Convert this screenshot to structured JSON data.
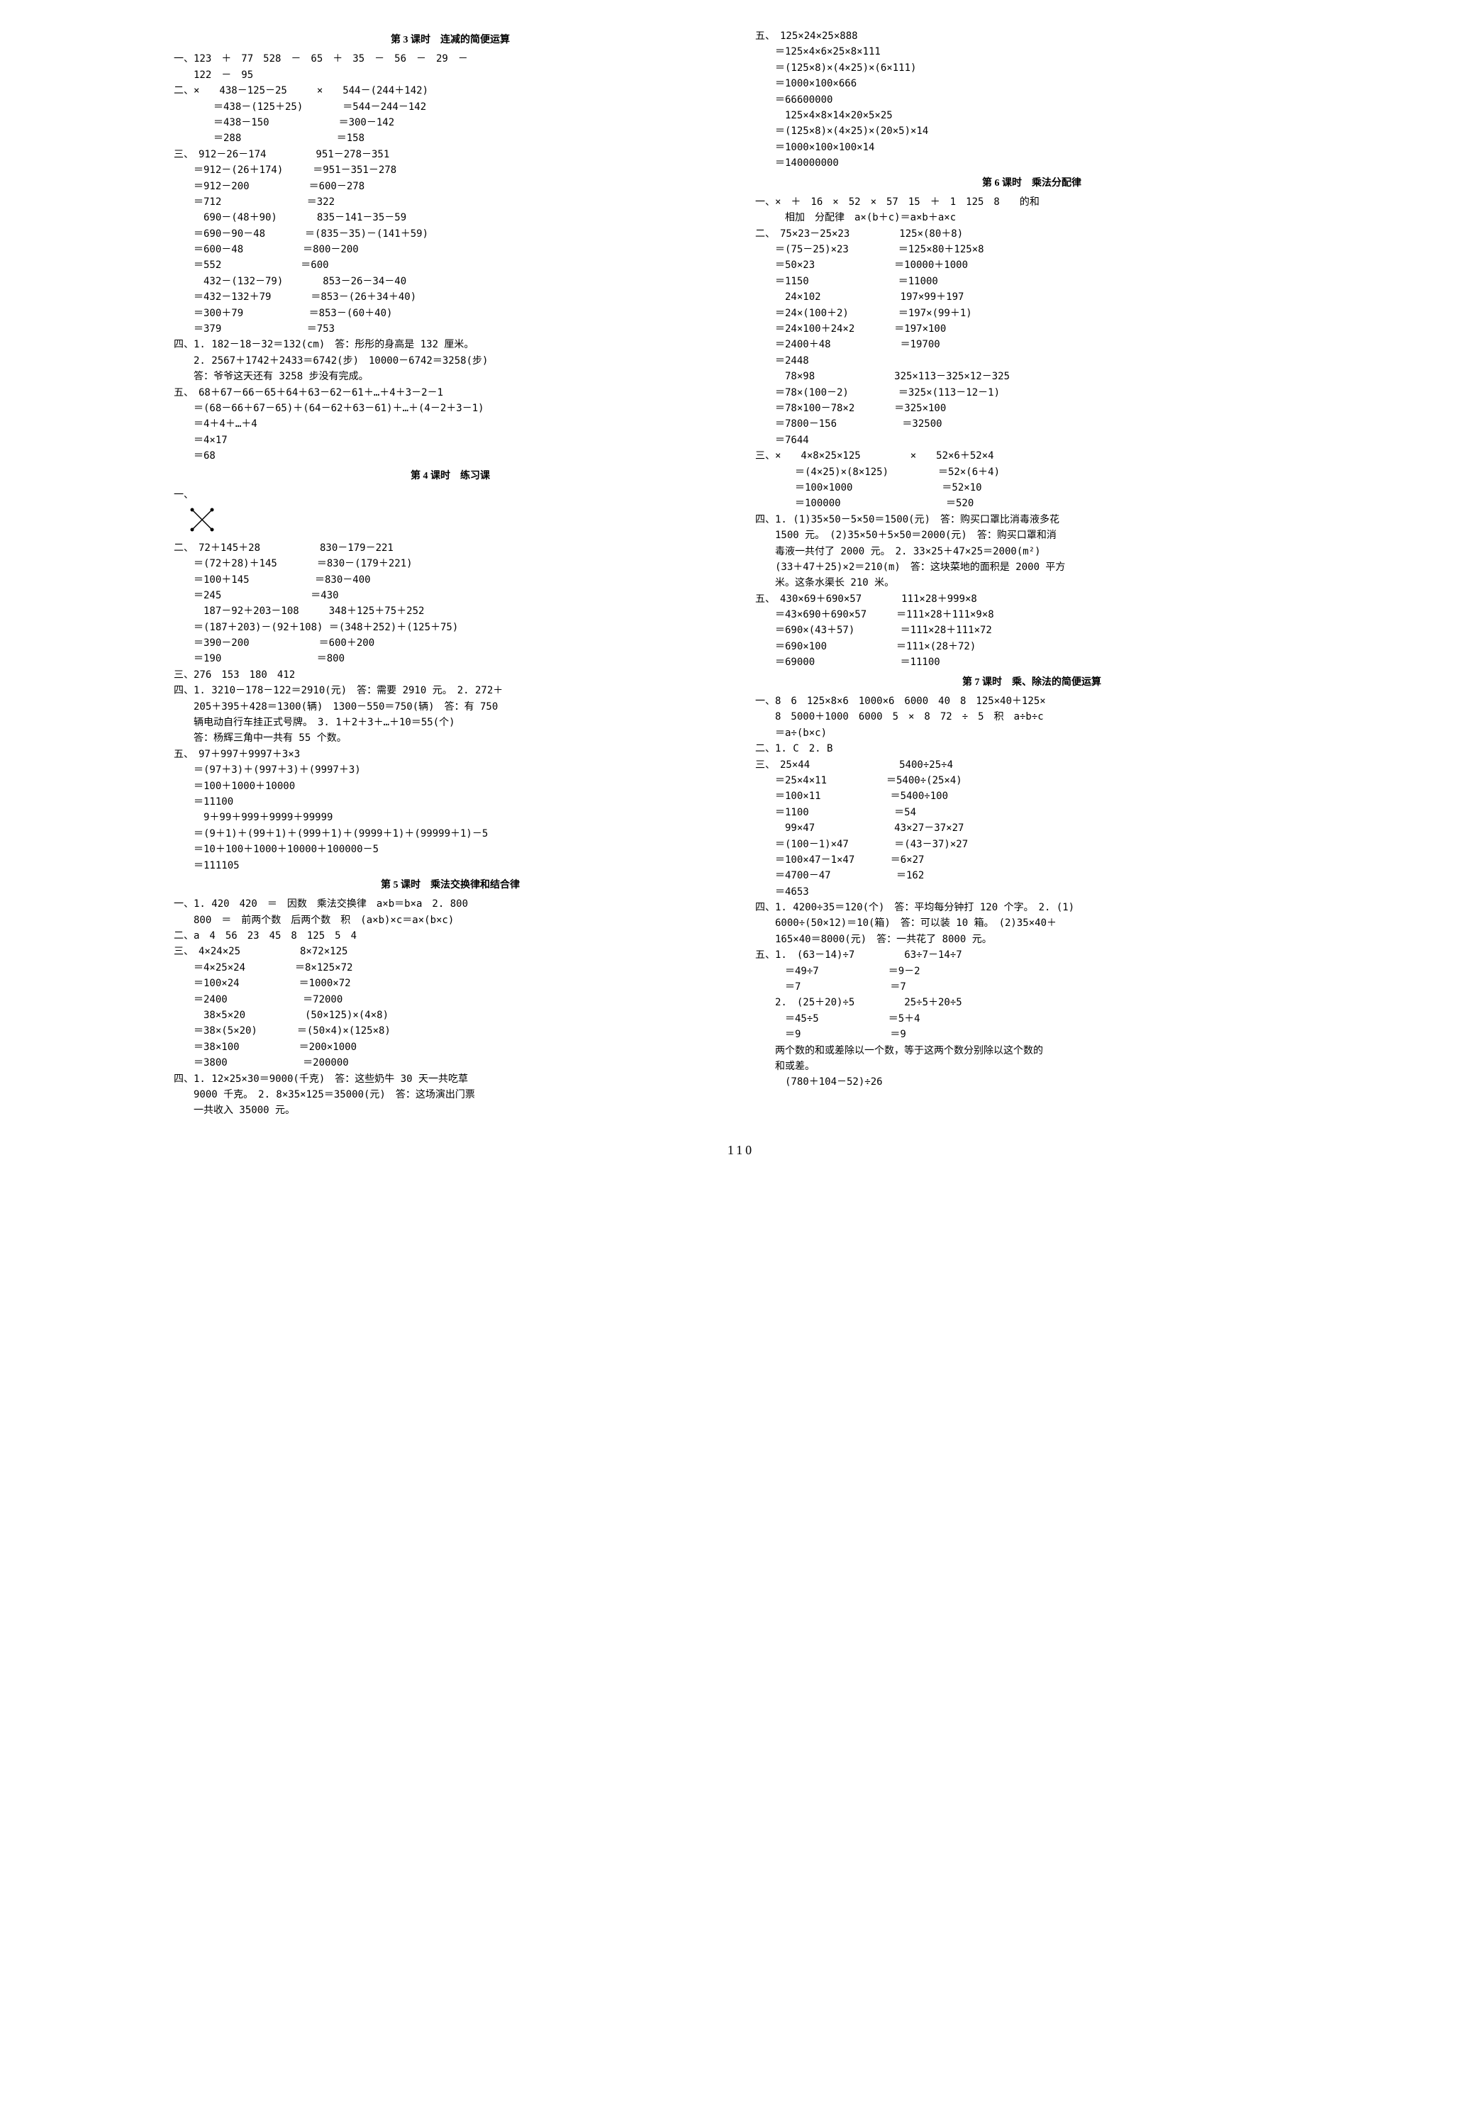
{
  "page_number": "110",
  "left_col": {
    "sec3_title": "第 3 课时　连减的简便运算",
    "s3_lines": [
      "一、123　＋　77　528　－　65　＋　35　－　56　－　29　－",
      "　　122　－　95",
      "二、×　　438－125－25　　　×　　544－(244＋142)",
      "　　　　＝438－(125＋25)　　　　＝544－244－142",
      "　　　　＝438－150　　　　　　　＝300－142",
      "　　　　＝288　　　　　　　　　 ＝158",
      "三、　912－26－174　　　　　951－278－351",
      "　　＝912－(26＋174)　　　＝951－351－278",
      "　　＝912－200　　　　　　＝600－278",
      "　　＝712　　　　　　　　 ＝322",
      "　　　690－(48＋90)　　　　835－141－35－59",
      "　　＝690－90－48　　　　＝(835－35)－(141＋59)",
      "　　＝600－48　　　　　　＝800－200",
      "　　＝552　　　　　　　　＝600",
      "　　　432－(132－79)　　　　853－26－34－40",
      "　　＝432－132＋79　　　　＝853－(26＋34＋40)",
      "　　＝300＋79　　　　　　 ＝853－(60＋40)",
      "　　＝379　　　　　　　　 ＝753",
      "四、1. 182－18－32＝132(cm)　答：彤彤的身高是 132 厘米。",
      "　　2. 2567＋1742＋2433＝6742(步)　10000－6742＝3258(步)",
      "　　答：爷爷这天还有 3258 步没有完成。",
      "五、　68＋67－66－65＋64＋63－62－61＋…＋4＋3－2－1",
      "　　＝(68－66＋67－65)＋(64－62＋63－61)＋…＋(4－2＋3－1)",
      "　　＝4＋4＋…＋4",
      "　　＝4×17",
      "　　＝68"
    ],
    "sec4_title": "第 4 课时　练习课",
    "s4_prelabel": "一、",
    "s4_lines": [
      "二、　72＋145＋28　　　　　　830－179－221",
      "　　＝(72＋28)＋145　　　　＝830－(179＋221)",
      "　　＝100＋145　　　　　　 ＝830－400",
      "　　＝245　　　　　　　　　＝430",
      "　　　187－92＋203－108　　　348＋125＋75＋252",
      "　　＝(187＋203)－(92＋108) ＝(348＋252)＋(125＋75)",
      "　　＝390－200　　　　　　　＝600＋200",
      "　　＝190　　　　　　　　　 ＝800",
      "三、276　153　180　412",
      "四、1. 3210－178－122＝2910(元)　答：需要 2910 元。　2. 272＋",
      "　　205＋395＋428＝1300(辆)　1300－550＝750(辆)　答：有 750",
      "　　辆电动自行车挂正式号牌。　3. 1＋2＋3＋…＋10＝55(个)",
      "　　答：杨辉三角中一共有 55 个数。",
      "五、　97＋997＋9997＋3×3",
      "　　＝(97＋3)＋(997＋3)＋(9997＋3)",
      "　　＝100＋1000＋10000",
      "　　＝11100",
      "　　　9＋99＋999＋9999＋99999",
      "　　＝(9＋1)＋(99＋1)＋(999＋1)＋(9999＋1)＋(99999＋1)－5",
      "　　＝10＋100＋1000＋10000＋100000－5",
      "　　＝111105"
    ],
    "sec5_title": "第 5 课时　乘法交换律和结合律",
    "s5_lines": [
      "一、1. 420　420　＝　因数　乘法交换律　a×b＝b×a　2. 800",
      "　　800　＝　前两个数　后两个数　积　(a×b)×c＝a×(b×c)",
      "二、a　4　56　23　45　8　125　5　4",
      "三、　4×24×25　　　　　　8×72×125",
      "　　＝4×25×24　　　　　＝8×125×72",
      "　　＝100×24　　　　　　＝1000×72",
      "　　＝2400　　　　　　　 ＝72000",
      "　　　38×5×20　　　　　　(50×125)×(4×8)",
      "　　＝38×(5×20)　　　　＝(50×4)×(125×8)",
      "　　＝38×100　　　　　　＝200×1000",
      "　　＝3800　　　　　　　 ＝200000",
      "四、1. 12×25×30＝9000(千克)　答：这些奶牛 30 天一共吃草",
      "　　9000 千克。　2. 8×35×125＝35000(元)　答：这场演出门票",
      "　　一共收入 35000 元。"
    ]
  },
  "right_col": {
    "s5b_lines": [
      "五、　125×24×25×888",
      "　　＝125×4×6×25×8×111",
      "　　＝(125×8)×(4×25)×(6×111)",
      "　　＝1000×100×666",
      "　　＝66600000",
      "　　　125×4×8×14×20×5×25",
      "　　＝(125×8)×(4×25)×(20×5)×14",
      "　　＝1000×100×100×14",
      "　　＝140000000"
    ],
    "sec6_title": "第 6 课时　乘法分配律",
    "s6_lines": [
      "一、×　＋　16　×　52　×　57　15　＋　1　125　8　　的和",
      "　　　相加　分配律　a×(b＋c)＝a×b＋a×c",
      "二、　75×23－25×23　　　　　125×(80＋8)",
      "　　＝(75－25)×23　　　　　＝125×80＋125×8",
      "　　＝50×23　　　　　　　　＝10000＋1000",
      "　　＝1150　　　　　　　　　＝11000",
      "　　　24×102　　　　　　　　197×99＋197",
      "　　＝24×(100＋2)　　　　　＝197×(99＋1)",
      "　　＝24×100＋24×2　　　　＝197×100",
      "　　＝2400＋48　　　　　　　＝19700",
      "　　＝2448",
      "　　　78×98　　　　　　　　325×113－325×12－325",
      "　　＝78×(100－2)　　　　　＝325×(113－12－1)",
      "　　＝78×100－78×2　　　　＝325×100",
      "　　＝7800－156　　　　　　 ＝32500",
      "　　＝7644",
      "三、×　　4×8×25×125　　　　　×　　52×6＋52×4",
      "　　　　＝(4×25)×(8×125)　　　　　＝52×(6＋4)",
      "　　　　＝100×1000　　　　　　　　　＝52×10",
      "　　　　＝100000　　　　　　　　　　 ＝520",
      "四、1. (1)35×50－5×50＝1500(元)　答：购买口罩比消毒液多花",
      "　　1500 元。　(2)35×50＋5×50＝2000(元)　答：购买口罩和消",
      "　　毒液一共付了 2000 元。　2. 33×25＋47×25＝2000(m²)",
      "　　(33＋47＋25)×2＝210(m)　答：这块菜地的面积是 2000 平方",
      "　　米。这条水渠长 210 米。",
      "五、　430×69＋690×57　　　　111×28＋999×8",
      "　　＝43×690＋690×57　　　＝111×28＋111×9×8",
      "　　＝690×(43＋57)　　　　 ＝111×28＋111×72",
      "　　＝690×100　　　　　　　＝111×(28＋72)",
      "　　＝69000　　　　　　　　 ＝11100"
    ],
    "sec7_title": "第 7 课时　乘、除法的简便运算",
    "s7_lines": [
      "一、8　6　125×8×6　1000×6　6000　40　8　125×40＋125×",
      "　　8　5000＋1000　6000　5　×　8　72　÷　5　积　a÷b÷c",
      "　　＝a÷(b×c)",
      "二、1. C　2. B",
      "三、　25×44　　　　　　　　　5400÷25÷4",
      "　　＝25×4×11　　　　　　＝5400÷(25×4)",
      "　　＝100×11　　　　　　　＝5400÷100",
      "　　＝1100　　　　　　　　 ＝54",
      "　　　99×47　　　　　　　　43×27－37×27",
      "　　＝(100－1)×47　　　　 ＝(43－37)×27",
      "　　＝100×47－1×47　　　 ＝6×27",
      "　　＝4700－47　　　　　　 ＝162",
      "　　＝4653",
      "四、1. 4200÷35＝120(个)　答：平均每分钟打 120 个字。　2. (1)",
      "　　6000÷(50×12)＝10(箱)　答：可以装 10 箱。　(2)35×40＋",
      "　　165×40＝8000(元)　答：一共花了 8000 元。",
      "五、1.　(63－14)÷7　　　　　63÷7－14÷7",
      "　　　＝49÷7　　　　　　　＝9－2",
      "　　　＝7　　　　　　　　　＝7",
      "　　2.　(25＋20)÷5　　　　　25÷5＋20÷5",
      "　　　＝45÷5　　　　　　　＝5＋4",
      "　　　＝9　　　　　　　　　＝9",
      "　　两个数的和或差除以一个数，等于这两个数分别除以这个数的",
      "　　和或差。",
      "　　　(780＋104－52)÷26"
    ]
  }
}
